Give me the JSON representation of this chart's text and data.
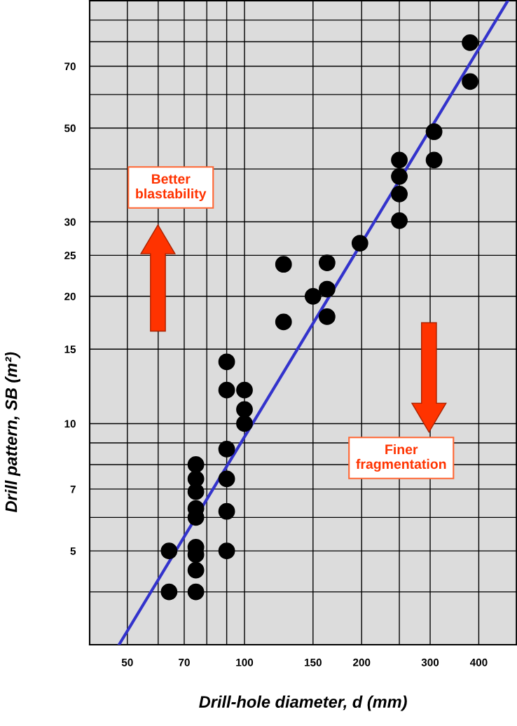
{
  "chart_data": {
    "type": "scatter",
    "xlabel": "Drill-hole diameter, d (mm)",
    "ylabel": "Drill pattern, SB (m²)",
    "log": "xy",
    "grid": true,
    "xlim": [
      40,
      500
    ],
    "ylim": [
      3,
      100
    ],
    "xticks": [
      50,
      {
        "value": 60,
        "label": null
      },
      70,
      {
        "value": 80,
        "label": null
      },
      {
        "value": 90,
        "label": null
      },
      100,
      150,
      200,
      {
        "value": 250,
        "label": null
      },
      300,
      400
    ],
    "yticks": [
      {
        "value": 4,
        "label": null
      },
      5,
      {
        "value": 6,
        "label": null
      },
      7,
      {
        "value": 8,
        "label": null
      },
      {
        "value": 9,
        "label": null
      },
      10,
      15,
      20,
      25,
      30,
      {
        "value": 40,
        "label": null
      },
      50,
      {
        "value": 60,
        "label": null
      },
      70,
      {
        "value": 80,
        "label": null
      },
      {
        "value": 90,
        "label": null
      }
    ],
    "series": [
      {
        "color": "#000000",
        "marker": "circle",
        "x": [
          64,
          64,
          75,
          75,
          75,
          75,
          75,
          75,
          75,
          75,
          75,
          90,
          90,
          90,
          90,
          90,
          90,
          100,
          100,
          100,
          126,
          126,
          150,
          163,
          163,
          163,
          198,
          250,
          250,
          250,
          250,
          307,
          307,
          380,
          380
        ],
        "values": [
          5,
          4,
          8,
          7.4,
          6.9,
          6.3,
          6,
          5.1,
          4.9,
          4.5,
          4,
          14,
          12,
          8.7,
          7.4,
          6.2,
          5,
          12,
          10.8,
          10,
          23.8,
          17.4,
          20,
          24,
          20.8,
          17.9,
          26.7,
          42,
          38.4,
          34.9,
          30.2,
          49,
          42,
          79.6,
          64.4
        ]
      },
      {
        "type": "line",
        "marker": "none",
        "color": "#3333cc",
        "x": [
          47.6,
          475
        ],
        "values": [
          3,
          100
        ]
      }
    ],
    "annotations": [
      "Better blastability",
      "Finer fragmentation"
    ]
  }
}
